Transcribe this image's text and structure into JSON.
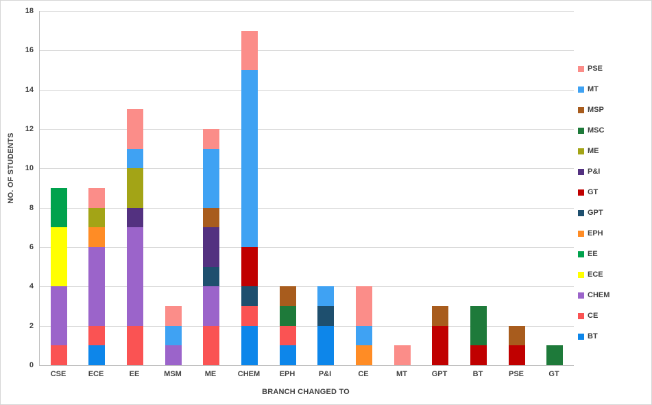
{
  "chart_data": {
    "type": "bar",
    "stacked": true,
    "title": "",
    "xlabel": "BRANCH CHANGED TO",
    "ylabel": "NO. OF STUDENTS",
    "ylim": [
      0,
      18
    ],
    "yticks": [
      0,
      2,
      4,
      6,
      8,
      10,
      12,
      14,
      16,
      18
    ],
    "grid": true,
    "legend_position": "right",
    "legend_order_top_to_bottom": [
      "PSE",
      "MT",
      "MSP",
      "MSC",
      "ME",
      "P&I",
      "GT",
      "GPT",
      "EPH",
      "EE",
      "ECE",
      "CHEM",
      "CE",
      "BT"
    ],
    "categories": [
      "CSE",
      "ECE",
      "EE",
      "MSM",
      "ME",
      "CHEM",
      "EPH",
      "P&I",
      "CE",
      "MT",
      "GPT",
      "BT",
      "PSE",
      "GT"
    ],
    "series": [
      {
        "name": "BT",
        "color": "#0d86ea",
        "values": [
          0,
          1,
          0,
          0,
          0,
          2,
          1,
          2,
          0,
          0,
          0,
          0,
          0,
          0
        ]
      },
      {
        "name": "CE",
        "color": "#fa5353",
        "values": [
          1,
          1,
          2,
          0,
          2,
          1,
          1,
          0,
          0,
          0,
          0,
          0,
          0,
          0
        ]
      },
      {
        "name": "CHEM",
        "color": "#9b64ca",
        "values": [
          3,
          4,
          5,
          1,
          2,
          0,
          0,
          0,
          0,
          0,
          0,
          0,
          0,
          0
        ]
      },
      {
        "name": "ECE",
        "color": "#ffff00",
        "values": [
          3,
          0,
          0,
          0,
          0,
          0,
          0,
          0,
          0,
          0,
          0,
          0,
          0,
          0
        ]
      },
      {
        "name": "EE",
        "color": "#00a24d",
        "values": [
          2,
          0,
          0,
          0,
          0,
          0,
          0,
          0,
          0,
          0,
          0,
          0,
          0,
          0
        ]
      },
      {
        "name": "EPH",
        "color": "#ff8c25",
        "values": [
          0,
          1,
          0,
          0,
          0,
          0,
          0,
          0,
          1,
          0,
          0,
          0,
          0,
          0
        ]
      },
      {
        "name": "GPT",
        "color": "#1e4f6e",
        "values": [
          0,
          0,
          0,
          0,
          1,
          1,
          0,
          1,
          0,
          0,
          0,
          0,
          0,
          0
        ]
      },
      {
        "name": "GT",
        "color": "#c00000",
        "values": [
          0,
          0,
          0,
          0,
          0,
          2,
          0,
          0,
          0,
          0,
          2,
          1,
          1,
          0
        ]
      },
      {
        "name": "P&I",
        "color": "#533180",
        "values": [
          0,
          0,
          1,
          0,
          2,
          0,
          0,
          0,
          0,
          0,
          0,
          0,
          0,
          0
        ]
      },
      {
        "name": "ME",
        "color": "#a3a416",
        "values": [
          0,
          1,
          2,
          0,
          0,
          0,
          0,
          0,
          0,
          0,
          0,
          0,
          0,
          0
        ]
      },
      {
        "name": "MSC",
        "color": "#1e7a3a",
        "values": [
          0,
          0,
          0,
          0,
          0,
          0,
          1,
          0,
          0,
          0,
          0,
          2,
          0,
          1
        ]
      },
      {
        "name": "MSP",
        "color": "#a85c1d",
        "values": [
          0,
          0,
          0,
          0,
          1,
          0,
          1,
          0,
          0,
          0,
          1,
          0,
          1,
          0
        ]
      },
      {
        "name": "MT",
        "color": "#3fa2f3",
        "values": [
          0,
          0,
          1,
          1,
          3,
          9,
          0,
          1,
          1,
          0,
          0,
          0,
          0,
          0
        ]
      },
      {
        "name": "PSE",
        "color": "#fb8d89",
        "values": [
          0,
          1,
          2,
          1,
          1,
          2,
          0,
          0,
          2,
          1,
          0,
          0,
          0,
          0
        ]
      }
    ]
  }
}
